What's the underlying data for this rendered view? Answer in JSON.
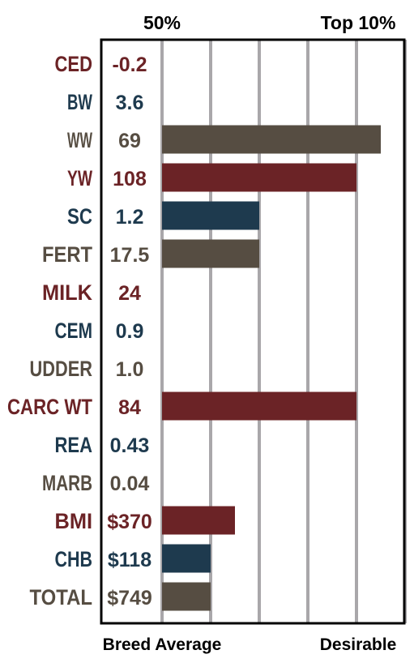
{
  "chart_data": {
    "type": "bar",
    "orientation": "horizontal",
    "header_left": "50%",
    "header_right": "Top 10%",
    "footer_left": "Breed Average",
    "footer_right": "Desirable",
    "grid": true,
    "xlim": [
      0,
      5
    ],
    "grid_count": 5,
    "colors": {
      "red": "#6b2326",
      "blue": "#1e3a4e",
      "gray": "#564d42",
      "grid": "#a9a7aa",
      "frame": "#000000"
    },
    "rows": [
      {
        "trait": "CED",
        "epd": "-0.2",
        "value": 0,
        "color": "red"
      },
      {
        "trait": "BW",
        "epd": "3.6",
        "value": 0,
        "color": "blue"
      },
      {
        "trait": "WW",
        "epd": "69",
        "value": 4.5,
        "color": "gray"
      },
      {
        "trait": "YW",
        "epd": "108",
        "value": 4.0,
        "color": "red"
      },
      {
        "trait": "SC",
        "epd": "1.2",
        "value": 2.0,
        "color": "blue"
      },
      {
        "trait": "FERT",
        "epd": "17.5",
        "value": 2.0,
        "color": "gray"
      },
      {
        "trait": "MILK",
        "epd": "24",
        "value": 0,
        "color": "red"
      },
      {
        "trait": "CEM",
        "epd": "0.9",
        "value": 0,
        "color": "blue"
      },
      {
        "trait": "UDDER",
        "epd": "1.0",
        "value": 0,
        "color": "gray"
      },
      {
        "trait": "CARC WT",
        "epd": "84",
        "value": 4.0,
        "color": "red"
      },
      {
        "trait": "REA",
        "epd": "0.43",
        "value": 0,
        "color": "blue"
      },
      {
        "trait": "MARB",
        "epd": "0.04",
        "value": 0,
        "color": "gray"
      },
      {
        "trait": "BMI",
        "epd": "$370",
        "value": 1.5,
        "color": "red"
      },
      {
        "trait": "CHB",
        "epd": "$118",
        "value": 1.0,
        "color": "blue"
      },
      {
        "trait": "TOTAL",
        "epd": "$749",
        "value": 1.0,
        "color": "gray"
      }
    ]
  }
}
